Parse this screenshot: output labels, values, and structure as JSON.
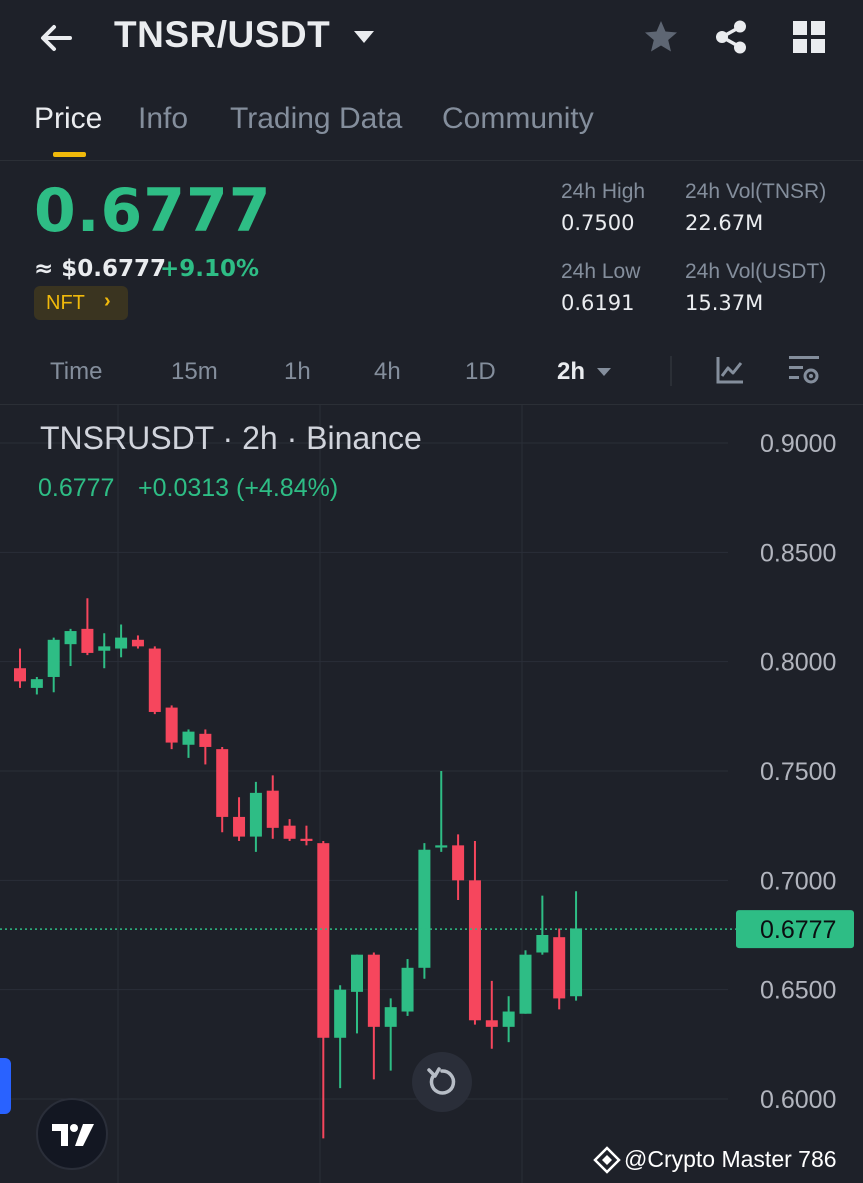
{
  "header": {
    "pair": "TNSR/USDT",
    "icons": [
      "back-arrow-icon",
      "caret-down-icon",
      "star-icon",
      "share-icon",
      "grid-menu-icon"
    ]
  },
  "tabs": [
    {
      "label": "Price",
      "active": true
    },
    {
      "label": "Info",
      "active": false
    },
    {
      "label": "Trading Data",
      "active": false
    },
    {
      "label": "Community",
      "active": false
    }
  ],
  "ticker": {
    "last_price": "0.6777",
    "approx_usd": "≈ $0.6777",
    "change_pct": "+9.10%",
    "tag": "NFT",
    "tag_chevron": "›"
  },
  "stats": {
    "high_label": "24h High",
    "high_value": "0.7500",
    "low_label": "24h Low",
    "low_value": "0.6191",
    "vol_tnsr_label": "24h Vol(TNSR)",
    "vol_tnsr_value": "22.67M",
    "vol_usdt_label": "24h Vol(USDT)",
    "vol_usdt_value": "15.37M"
  },
  "intervals": [
    "Time",
    "15m",
    "1h",
    "4h",
    "1D",
    "2h"
  ],
  "selected_interval": "2h",
  "colors": {
    "up": "#2ebd85",
    "down": "#f6465d",
    "accent": "#f0b90b",
    "background": "#1e2129"
  },
  "chart_data": {
    "type": "candlestick",
    "title": "TNSRUSDT · 2h · Binance",
    "last": "0.6777",
    "change": "+0.0313 (+4.84%)",
    "price_tag": "0.6777",
    "y_ticks": [
      "0.9000",
      "0.8500",
      "0.8000",
      "0.7500",
      "0.7000",
      "0.6500",
      "0.6000"
    ],
    "ylim": [
      0.582,
      0.92
    ],
    "last_price_value": 0.6777,
    "grid": true,
    "candles": [
      {
        "o": 0.797,
        "h": 0.806,
        "l": 0.788,
        "c": 0.791
      },
      {
        "o": 0.788,
        "h": 0.793,
        "l": 0.785,
        "c": 0.792
      },
      {
        "o": 0.793,
        "h": 0.811,
        "l": 0.786,
        "c": 0.81
      },
      {
        "o": 0.808,
        "h": 0.815,
        "l": 0.798,
        "c": 0.814
      },
      {
        "o": 0.815,
        "h": 0.829,
        "l": 0.803,
        "c": 0.804
      },
      {
        "o": 0.805,
        "h": 0.813,
        "l": 0.797,
        "c": 0.807
      },
      {
        "o": 0.806,
        "h": 0.817,
        "l": 0.802,
        "c": 0.811
      },
      {
        "o": 0.81,
        "h": 0.812,
        "l": 0.806,
        "c": 0.807
      },
      {
        "o": 0.806,
        "h": 0.807,
        "l": 0.776,
        "c": 0.777
      },
      {
        "o": 0.779,
        "h": 0.78,
        "l": 0.76,
        "c": 0.763
      },
      {
        "o": 0.762,
        "h": 0.769,
        "l": 0.756,
        "c": 0.768
      },
      {
        "o": 0.767,
        "h": 0.769,
        "l": 0.753,
        "c": 0.761
      },
      {
        "o": 0.76,
        "h": 0.761,
        "l": 0.722,
        "c": 0.729
      },
      {
        "o": 0.729,
        "h": 0.738,
        "l": 0.718,
        "c": 0.72
      },
      {
        "o": 0.72,
        "h": 0.745,
        "l": 0.713,
        "c": 0.74
      },
      {
        "o": 0.741,
        "h": 0.748,
        "l": 0.719,
        "c": 0.724
      },
      {
        "o": 0.725,
        "h": 0.728,
        "l": 0.718,
        "c": 0.719
      },
      {
        "o": 0.719,
        "h": 0.725,
        "l": 0.716,
        "c": 0.718
      },
      {
        "o": 0.717,
        "h": 0.718,
        "l": 0.582,
        "c": 0.628
      },
      {
        "o": 0.628,
        "h": 0.652,
        "l": 0.605,
        "c": 0.65
      },
      {
        "o": 0.649,
        "h": 0.666,
        "l": 0.63,
        "c": 0.666
      },
      {
        "o": 0.666,
        "h": 0.667,
        "l": 0.609,
        "c": 0.633
      },
      {
        "o": 0.633,
        "h": 0.646,
        "l": 0.613,
        "c": 0.642
      },
      {
        "o": 0.64,
        "h": 0.664,
        "l": 0.638,
        "c": 0.66
      },
      {
        "o": 0.66,
        "h": 0.717,
        "l": 0.655,
        "c": 0.714
      },
      {
        "o": 0.715,
        "h": 0.75,
        "l": 0.713,
        "c": 0.716
      },
      {
        "o": 0.716,
        "h": 0.721,
        "l": 0.691,
        "c": 0.7
      },
      {
        "o": 0.7,
        "h": 0.718,
        "l": 0.634,
        "c": 0.636
      },
      {
        "o": 0.636,
        "h": 0.654,
        "l": 0.623,
        "c": 0.633
      },
      {
        "o": 0.633,
        "h": 0.647,
        "l": 0.626,
        "c": 0.64
      },
      {
        "o": 0.639,
        "h": 0.668,
        "l": 0.639,
        "c": 0.666
      },
      {
        "o": 0.667,
        "h": 0.693,
        "l": 0.666,
        "c": 0.675
      },
      {
        "o": 0.674,
        "h": 0.678,
        "l": 0.641,
        "c": 0.646
      },
      {
        "o": 0.647,
        "h": 0.695,
        "l": 0.645,
        "c": 0.678
      }
    ]
  },
  "watermark": "@Crypto Master 786"
}
